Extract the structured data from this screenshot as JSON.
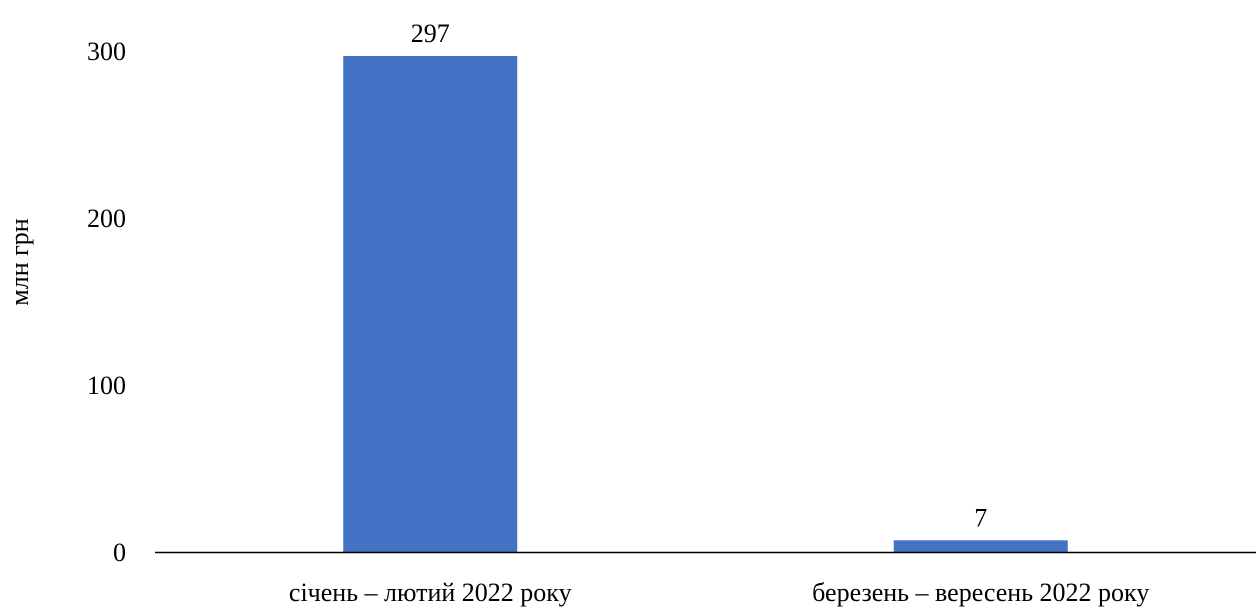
{
  "chart_data": {
    "type": "bar",
    "categories": [
      "січень – лютий 2022 року",
      "березень – вересень 2022 року"
    ],
    "values": [
      297,
      7
    ],
    "data_labels": [
      "297",
      "7"
    ],
    "title": "",
    "xlabel": "",
    "ylabel": "млн грн",
    "ylim": [
      0,
      300
    ],
    "yticks": [
      0,
      100,
      200,
      300
    ],
    "ytick_labels": [
      "0",
      "100",
      "200",
      "300"
    ],
    "grid": false,
    "legend": "none",
    "bar_color": "#4472C4",
    "axis_color": "#000000"
  }
}
